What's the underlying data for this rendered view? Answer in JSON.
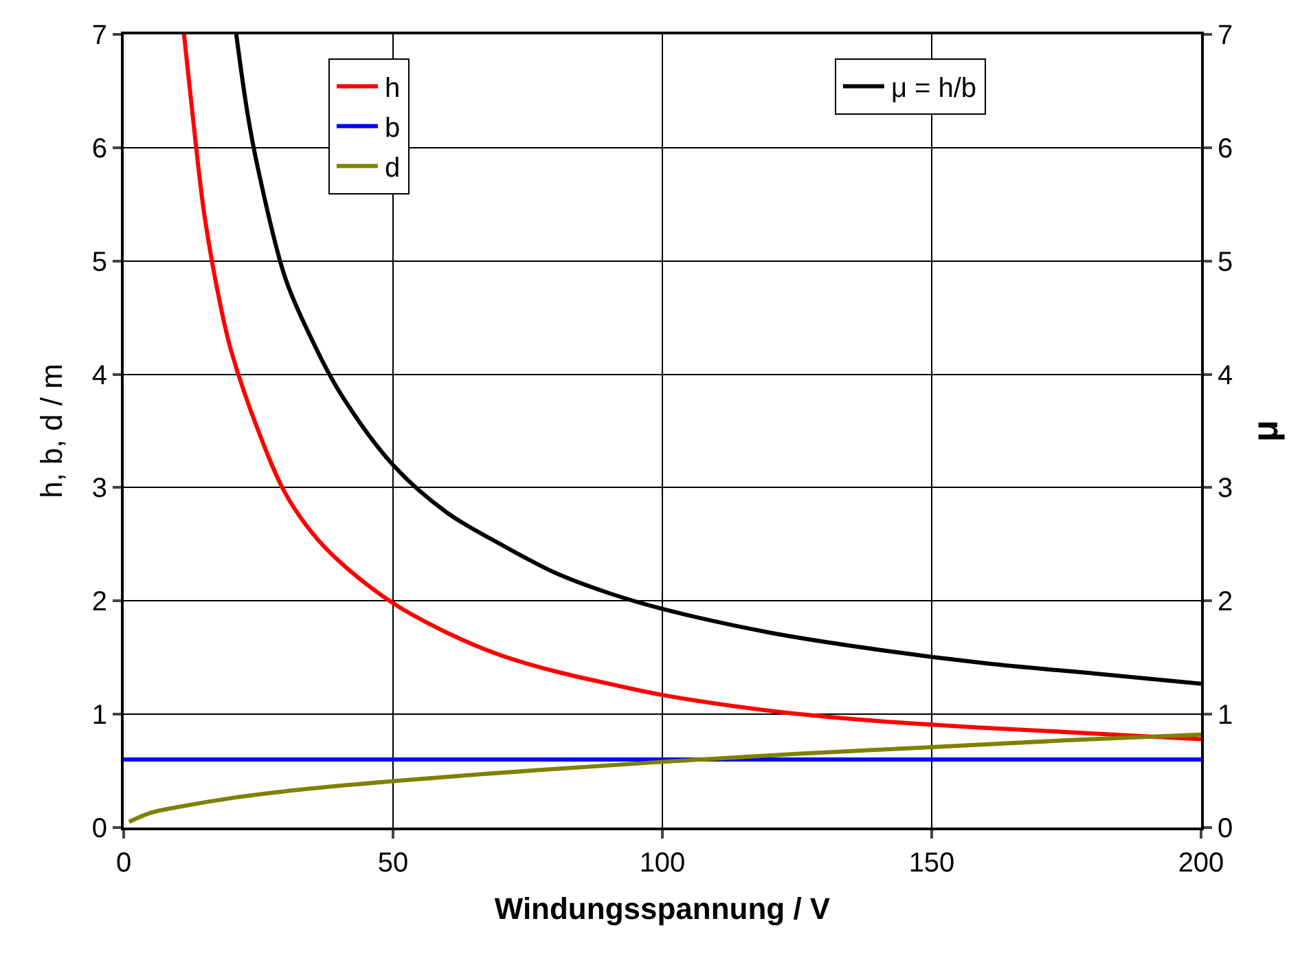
{
  "chart_data": {
    "type": "line",
    "xlabel": "Windungsspannung / V",
    "ylabel": "h, b, d / m",
    "y2label": "μ",
    "xlim": [
      0,
      200
    ],
    "xticks": [
      0,
      50,
      100,
      150,
      200
    ],
    "ylim": [
      0,
      7
    ],
    "yticks": [
      0,
      1,
      2,
      3,
      4,
      5,
      6,
      7
    ],
    "y2lim": [
      0,
      7
    ],
    "y2ticks": [
      0,
      1,
      2,
      3,
      4,
      5,
      6,
      7
    ],
    "grid": true,
    "legend": "top",
    "line_style": "solid",
    "marker": "none",
    "series": [
      {
        "name": "h",
        "color": "#ff0000",
        "x": [
          11.2,
          13,
          15,
          18,
          20,
          25,
          30,
          35,
          40,
          50,
          60,
          70,
          80,
          90,
          100,
          120,
          140,
          160,
          180,
          200
        ],
        "values": [
          7,
          6.2,
          5.4,
          4.6,
          4.2,
          3.5,
          2.95,
          2.6,
          2.35,
          1.98,
          1.72,
          1.52,
          1.38,
          1.27,
          1.17,
          1.03,
          0.94,
          0.88,
          0.83,
          0.78
        ]
      },
      {
        "name": "b",
        "color": "#0000ff",
        "x": [
          0,
          200
        ],
        "values": [
          0.6,
          0.6
        ]
      },
      {
        "name": "d",
        "color": "#808000",
        "x": [
          1,
          5,
          10,
          20,
          30,
          50,
          75,
          100,
          125,
          150,
          175,
          200
        ],
        "values": [
          0.05,
          0.13,
          0.18,
          0.26,
          0.32,
          0.41,
          0.5,
          0.58,
          0.65,
          0.71,
          0.77,
          0.82
        ]
      },
      {
        "name": "μ = h/b",
        "color": "#000000",
        "axis": "y2",
        "x": [
          20.9,
          23,
          25,
          30,
          35,
          40,
          50,
          60,
          70,
          80,
          90,
          100,
          120,
          140,
          160,
          180,
          200
        ],
        "values": [
          7,
          6.3,
          5.8,
          4.85,
          4.3,
          3.85,
          3.2,
          2.78,
          2.5,
          2.25,
          2.07,
          1.93,
          1.72,
          1.57,
          1.45,
          1.36,
          1.27
        ]
      }
    ]
  }
}
